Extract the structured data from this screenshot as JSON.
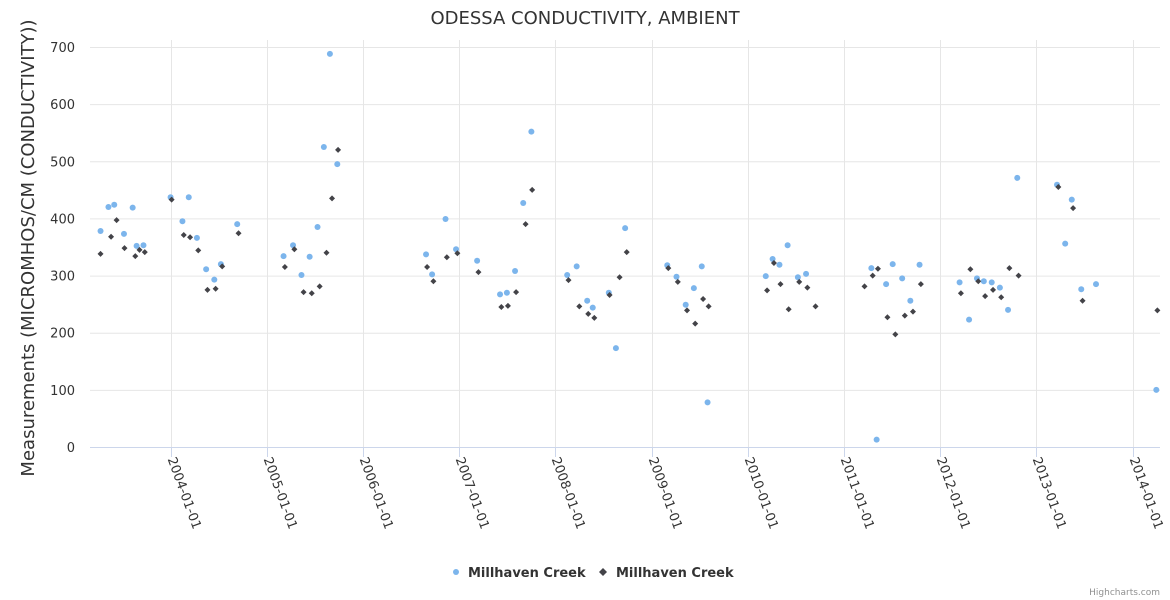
{
  "chart_data": {
    "type": "scatter",
    "title": "ODESSA CONDUCTIVITY, AMBIENT",
    "xlabel": "",
    "ylabel": "Measurements (MICROMHOS/CM (CONDUCTIVITY))",
    "ylim": [
      0,
      700
    ],
    "yticks": [
      0,
      100,
      200,
      300,
      400,
      500,
      600,
      700
    ],
    "xlim": [
      "2003-03-01",
      "2014-04-15"
    ],
    "xticks": [
      "2004-01-01",
      "2005-01-01",
      "2006-01-01",
      "2007-01-01",
      "2008-01-01",
      "2009-01-01",
      "2010-01-01",
      "2011-01-01",
      "2012-01-01",
      "2013-01-01",
      "2014-01-01"
    ],
    "grid": true,
    "legend_position": "bottom-center",
    "series": [
      {
        "name": "Millhaven Creek",
        "marker": "circle",
        "color": "#7cb5ec",
        "points": [
          [
            "2003-04-10",
            378
          ],
          [
            "2003-05-10",
            420
          ],
          [
            "2003-06-01",
            424
          ],
          [
            "2003-07-08",
            373
          ],
          [
            "2003-08-10",
            419
          ],
          [
            "2003-08-25",
            352
          ],
          [
            "2003-09-20",
            353
          ],
          [
            "2004-01-01",
            437
          ],
          [
            "2004-02-15",
            395
          ],
          [
            "2004-03-10",
            437
          ],
          [
            "2004-04-10",
            366
          ],
          [
            "2004-05-15",
            311
          ],
          [
            "2004-06-15",
            293
          ],
          [
            "2004-07-10",
            320
          ],
          [
            "2004-09-10",
            390
          ],
          [
            "2005-03-05",
            334
          ],
          [
            "2005-04-10",
            353
          ],
          [
            "2005-05-12",
            301
          ],
          [
            "2005-06-12",
            333
          ],
          [
            "2005-07-12",
            385
          ],
          [
            "2005-08-05",
            525
          ],
          [
            "2005-08-28",
            688
          ],
          [
            "2005-09-25",
            495
          ],
          [
            "2006-08-28",
            337
          ],
          [
            "2006-09-20",
            302
          ],
          [
            "2006-11-10",
            399
          ],
          [
            "2006-12-20",
            346
          ],
          [
            "2007-03-10",
            326
          ],
          [
            "2007-06-05",
            267
          ],
          [
            "2007-07-01",
            270
          ],
          [
            "2007-08-01",
            308
          ],
          [
            "2007-09-01",
            427
          ],
          [
            "2007-10-02",
            552
          ],
          [
            "2008-02-15",
            301
          ],
          [
            "2008-03-22",
            316
          ],
          [
            "2008-05-01",
            256
          ],
          [
            "2008-05-22",
            244
          ],
          [
            "2008-07-22",
            270
          ],
          [
            "2008-08-18",
            173
          ],
          [
            "2008-09-22",
            383
          ],
          [
            "2009-03-01",
            318
          ],
          [
            "2009-04-05",
            298
          ],
          [
            "2009-05-10",
            249
          ],
          [
            "2009-06-10",
            278
          ],
          [
            "2009-07-10",
            316
          ],
          [
            "2009-08-01",
            78
          ],
          [
            "2010-03-10",
            299
          ],
          [
            "2010-04-05",
            329
          ],
          [
            "2010-05-01",
            319
          ],
          [
            "2010-06-01",
            353
          ],
          [
            "2010-07-10",
            297
          ],
          [
            "2010-08-10",
            303
          ],
          [
            "2011-04-15",
            313
          ],
          [
            "2011-05-05",
            13
          ],
          [
            "2011-06-10",
            285
          ],
          [
            "2011-07-05",
            320
          ],
          [
            "2011-08-10",
            295
          ],
          [
            "2011-09-10",
            256
          ],
          [
            "2011-10-15",
            319
          ],
          [
            "2012-03-15",
            288
          ],
          [
            "2012-04-20",
            223
          ],
          [
            "2012-05-20",
            295
          ],
          [
            "2012-06-15",
            290
          ],
          [
            "2012-07-15",
            288
          ],
          [
            "2012-08-15",
            279
          ],
          [
            "2012-09-15",
            240
          ],
          [
            "2012-10-20",
            471
          ],
          [
            "2013-03-20",
            459
          ],
          [
            "2013-04-20",
            356
          ],
          [
            "2013-05-15",
            433
          ],
          [
            "2013-06-20",
            276
          ],
          [
            "2013-08-15",
            285
          ],
          [
            "2014-04-01",
            100
          ]
        ]
      },
      {
        "name": "Millhaven Creek",
        "marker": "diamond",
        "color": "#434348",
        "points": [
          [
            "2003-04-10",
            338
          ],
          [
            "2003-05-20",
            368
          ],
          [
            "2003-06-10",
            397
          ],
          [
            "2003-07-10",
            348
          ],
          [
            "2003-08-20",
            334
          ],
          [
            "2003-09-05",
            345
          ],
          [
            "2003-09-25",
            341
          ],
          [
            "2004-01-05",
            433
          ],
          [
            "2004-02-20",
            371
          ],
          [
            "2004-03-15",
            367
          ],
          [
            "2004-04-15",
            344
          ],
          [
            "2004-05-20",
            275
          ],
          [
            "2004-06-20",
            277
          ],
          [
            "2004-07-15",
            316
          ],
          [
            "2004-09-15",
            374
          ],
          [
            "2005-03-10",
            315
          ],
          [
            "2005-04-15",
            346
          ],
          [
            "2005-05-20",
            271
          ],
          [
            "2005-06-20",
            269
          ],
          [
            "2005-07-20",
            281
          ],
          [
            "2005-08-15",
            340
          ],
          [
            "2005-09-05",
            435
          ],
          [
            "2005-09-28",
            520
          ],
          [
            "2006-09-01",
            315
          ],
          [
            "2006-09-25",
            290
          ],
          [
            "2006-11-15",
            332
          ],
          [
            "2006-12-25",
            339
          ],
          [
            "2007-03-15",
            306
          ],
          [
            "2007-06-10",
            245
          ],
          [
            "2007-07-05",
            247
          ],
          [
            "2007-08-05",
            271
          ],
          [
            "2007-09-10",
            390
          ],
          [
            "2007-10-05",
            450
          ],
          [
            "2008-02-20",
            292
          ],
          [
            "2008-04-01",
            246
          ],
          [
            "2008-05-05",
            233
          ],
          [
            "2008-05-28",
            226
          ],
          [
            "2008-07-25",
            266
          ],
          [
            "2008-09-01",
            297
          ],
          [
            "2008-09-28",
            341
          ],
          [
            "2009-03-05",
            313
          ],
          [
            "2009-04-10",
            289
          ],
          [
            "2009-05-15",
            239
          ],
          [
            "2009-06-15",
            216
          ],
          [
            "2009-07-15",
            259
          ],
          [
            "2009-08-05",
            246
          ],
          [
            "2010-03-15",
            274
          ],
          [
            "2010-04-10",
            322
          ],
          [
            "2010-05-05",
            285
          ],
          [
            "2010-06-05",
            241
          ],
          [
            "2010-07-15",
            289
          ],
          [
            "2010-08-15",
            279
          ],
          [
            "2010-09-15",
            246
          ],
          [
            "2011-03-20",
            281
          ],
          [
            "2011-04-20",
            300
          ],
          [
            "2011-05-10",
            312
          ],
          [
            "2011-06-15",
            227
          ],
          [
            "2011-07-15",
            197
          ],
          [
            "2011-08-20",
            230
          ],
          [
            "2011-09-20",
            237
          ],
          [
            "2011-10-20",
            285
          ],
          [
            "2012-03-20",
            269
          ],
          [
            "2012-04-25",
            311
          ],
          [
            "2012-05-25",
            290
          ],
          [
            "2012-06-20",
            264
          ],
          [
            "2012-07-20",
            275
          ],
          [
            "2012-08-20",
            262
          ],
          [
            "2012-09-20",
            313
          ],
          [
            "2012-10-25",
            300
          ],
          [
            "2013-03-25",
            455
          ],
          [
            "2013-05-20",
            418
          ],
          [
            "2013-06-25",
            256
          ],
          [
            "2014-04-05",
            239
          ]
        ]
      }
    ]
  },
  "credits": "Highcharts.com",
  "colors": {
    "series1": "#7cb5ec",
    "series2": "#434348",
    "grid": "#e6e6e6",
    "text": "#333333"
  }
}
